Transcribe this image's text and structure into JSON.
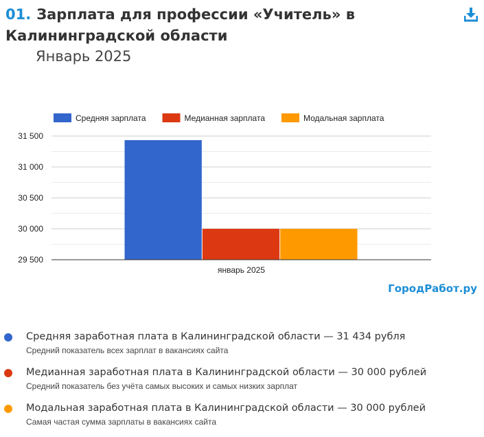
{
  "header": {
    "number": "01.",
    "title": "Зарплата для профессии «Учитель» в Калининградской области",
    "period": "Январь 2025"
  },
  "icons": {
    "download": "download-icon"
  },
  "brand": "ГородРабот.ру",
  "colors": {
    "average": "#3366cc",
    "median": "#dc3912",
    "modal": "#ff9900",
    "accent": "#1b8ed6"
  },
  "chart_data": {
    "type": "bar",
    "categories": [
      "январь 2025"
    ],
    "series": [
      {
        "name": "Средняя зарплата",
        "values": [
          31434
        ],
        "color": "#3366cc"
      },
      {
        "name": "Медианная зарплата",
        "values": [
          30000
        ],
        "color": "#dc3912"
      },
      {
        "name": "Модальная зарплата",
        "values": [
          30000
        ],
        "color": "#ff9900"
      }
    ],
    "yticks": [
      29500,
      30000,
      30500,
      31000,
      31500
    ],
    "ytick_labels": [
      "29 500",
      "30 000",
      "30 500",
      "31 000",
      "31 500"
    ],
    "ylim": [
      29500,
      31500
    ],
    "legend_position": "top",
    "title": "",
    "xlabel": "",
    "ylabel": ""
  },
  "legend_items": [
    {
      "title": "Средняя заработная плата в Калининградской области — 31 434 рубля",
      "desc": "Средний показатель всех зарплат в вакансиях сайта",
      "color": "#3366cc"
    },
    {
      "title": "Медианная заработная плата в Калининградской области — 30 000 рублей",
      "desc": "Средний показатель без учёта самых высоких и самых низких зарплат",
      "color": "#dc3912"
    },
    {
      "title": "Модальная заработная плата в Калининградской области — 30 000 рублей",
      "desc": "Самая частая сумма зарплаты в вакансиях сайта",
      "color": "#ff9900"
    }
  ]
}
